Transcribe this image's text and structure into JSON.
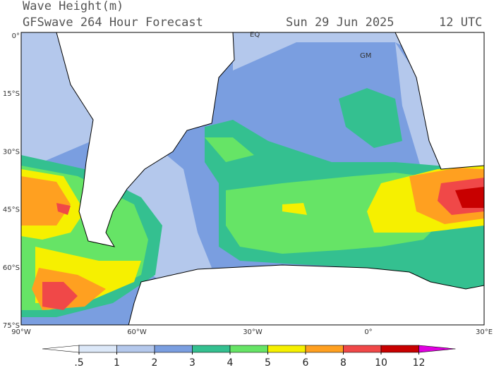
{
  "header": {
    "title": "Wave Height(m)",
    "model": "GFSwave 264 Hour Forecast",
    "date": "Sun 29 Jun 2025",
    "time": "12 UTC"
  },
  "map": {
    "lat_labels": [
      "0°",
      "15°S",
      "30°S",
      "45°S",
      "60°S",
      "75°S"
    ],
    "lon_labels": [
      "90°W",
      "60°W",
      "30°W",
      "0°",
      "30°E"
    ],
    "markers": [
      "EQ",
      "GM"
    ]
  },
  "colorbar": {
    "ticks": [
      {
        "value": 0.5,
        "label": ".5"
      },
      1,
      2,
      3,
      4,
      5,
      6,
      8,
      10,
      12
    ],
    "colors": [
      "#ffffff",
      "#dce8f8",
      "#b4c8ec",
      "#7a9ee0",
      "#34c090",
      "#66e466",
      "#f6f000",
      "#ffa020",
      "#f04848",
      "#c80000",
      "#e000e0"
    ]
  }
}
